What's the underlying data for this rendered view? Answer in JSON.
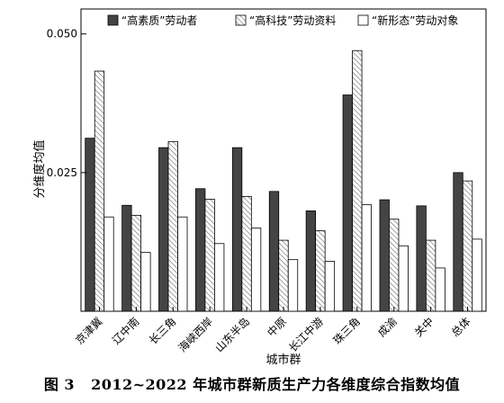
{
  "chart_data": {
    "type": "bar",
    "title": "",
    "xlabel": "城市群",
    "ylabel": "分维度均值",
    "ylim": [
      0,
      0.0545
    ],
    "yticks": [
      "0.025",
      "0.050"
    ],
    "ytick_values": [
      0.025,
      0.05
    ],
    "grid": false,
    "legend_position": "top",
    "categories": [
      "京津冀",
      "辽中南",
      "长三角",
      "海峡西岸",
      "山东半岛",
      "中原",
      "长江中游",
      "珠三角",
      "成渝",
      "关中",
      "总体"
    ],
    "series": [
      {
        "name": "“高素质”劳动者",
        "pattern": "solid-dark",
        "color": "#444444",
        "values": [
          0.0312,
          0.0191,
          0.0295,
          0.0221,
          0.0295,
          0.0216,
          0.0181,
          0.039,
          0.0201,
          0.019,
          0.025
        ]
      },
      {
        "name": "“高科技”劳动资料",
        "pattern": "hatched",
        "color": "#bbbbbb",
        "values": [
          0.0433,
          0.0173,
          0.0306,
          0.0202,
          0.0207,
          0.0128,
          0.0145,
          0.047,
          0.0166,
          0.0128,
          0.0235
        ]
      },
      {
        "name": "“新形态”劳动对象",
        "pattern": "white",
        "color": "#ffffff",
        "values": [
          0.017,
          0.0106,
          0.017,
          0.0122,
          0.015,
          0.0093,
          0.009,
          0.0192,
          0.0118,
          0.0078,
          0.013
        ]
      }
    ]
  },
  "caption": {
    "figure_no": "图 3",
    "text": "2012~2022 年城市群新质生产力各维度综合指数均值"
  }
}
